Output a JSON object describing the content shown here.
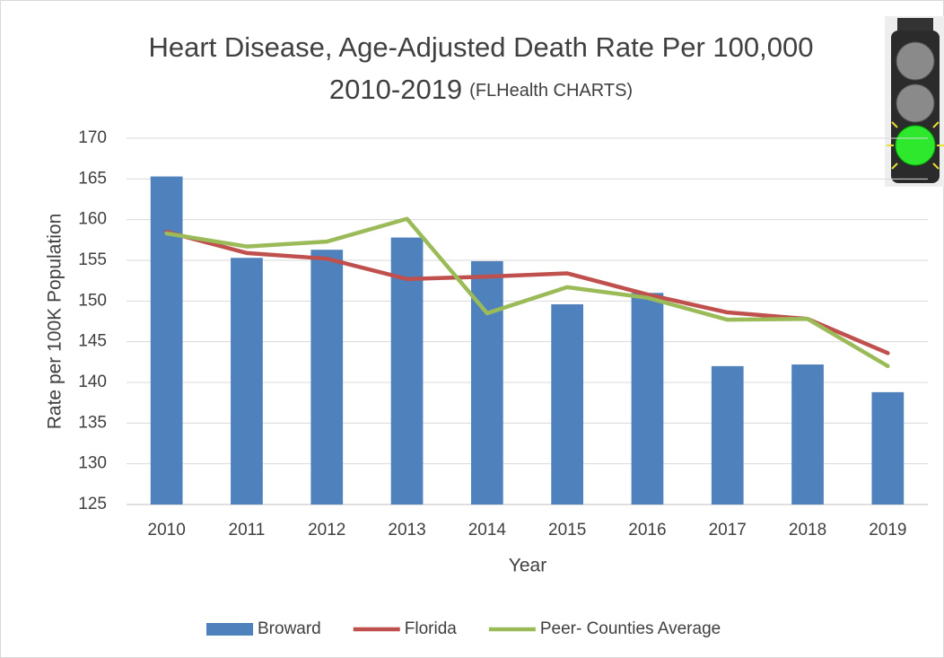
{
  "chart_data": {
    "type": "bar_line",
    "title": "Heart Disease, Age-Adjusted Death Rate Per 100,000",
    "subtitle": "2010-2019",
    "subtitle_note": "(FLHealth CHARTS)",
    "x_label": "Year",
    "y_label": "Rate per 100K Population",
    "categories": [
      "2010",
      "2011",
      "2012",
      "2013",
      "2014",
      "2015",
      "2016",
      "2017",
      "2018",
      "2019"
    ],
    "series": [
      {
        "name": "Broward",
        "kind": "bar",
        "color": "#4f81bd",
        "values": [
          165.3,
          155.3,
          156.3,
          157.8,
          154.9,
          149.6,
          151.0,
          142.0,
          142.2,
          138.8
        ]
      },
      {
        "name": "Florida",
        "kind": "line",
        "color": "#c0504d",
        "values": [
          158.5,
          155.9,
          155.2,
          152.7,
          153.0,
          153.4,
          150.8,
          148.6,
          147.8,
          143.6
        ]
      },
      {
        "name": "Peer- Counties Average",
        "kind": "line",
        "color": "#9bbb59",
        "values": [
          158.3,
          156.7,
          157.3,
          160.1,
          148.5,
          151.7,
          150.4,
          147.7,
          147.8,
          142.0
        ]
      }
    ],
    "ylim": [
      125,
      170
    ],
    "yticks": [
      125,
      130,
      135,
      140,
      145,
      150,
      155,
      160,
      165,
      170
    ],
    "grid": true,
    "legend": "bottom"
  }
}
